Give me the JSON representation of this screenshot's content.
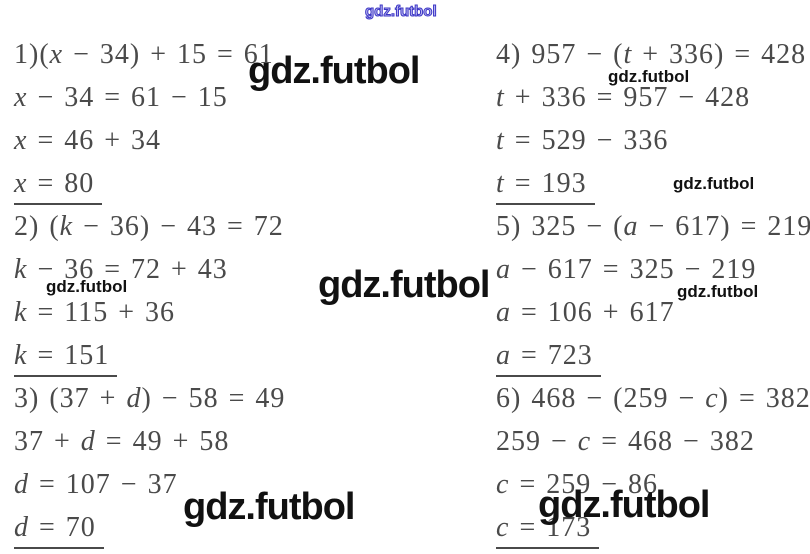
{
  "watermark": {
    "text": "gdz.futbol"
  },
  "colors": {
    "math_text": "#4a4a4a",
    "watermark_black": "#111111",
    "watermark_blue": "#3b35c5",
    "background": "#ffffff"
  },
  "columns": [
    {
      "name": "left",
      "problems": [
        {
          "lines": [
            "1)(x − 34) + 15 = 61",
            "x − 34 = 61 − 15",
            "x = 46 + 34"
          ],
          "answer": "x = 80"
        },
        {
          "lines": [
            "2) (k − 36) − 43 = 72",
            "k − 36 = 72 + 43",
            "k = 115 + 36"
          ],
          "answer": "k = 151"
        },
        {
          "lines": [
            "3) (37 + d) − 58 = 49",
            "37 + d = 49 + 58",
            "d = 107 − 37"
          ],
          "answer": "d = 70"
        }
      ]
    },
    {
      "name": "right",
      "problems": [
        {
          "lines": [
            "4) 957 − (t + 336) = 428",
            "t + 336 = 957 − 428",
            "t = 529 − 336"
          ],
          "answer": "t = 193"
        },
        {
          "lines": [
            "5) 325 − (a − 617) = 219",
            "a − 617 = 325 − 219",
            "a = 106 + 617"
          ],
          "answer": "a = 723"
        },
        {
          "lines": [
            "6) 468 − (259 − c) = 382",
            "259 − c = 468 − 382",
            "c = 259 − 86"
          ],
          "answer": "c = 173"
        }
      ]
    }
  ]
}
